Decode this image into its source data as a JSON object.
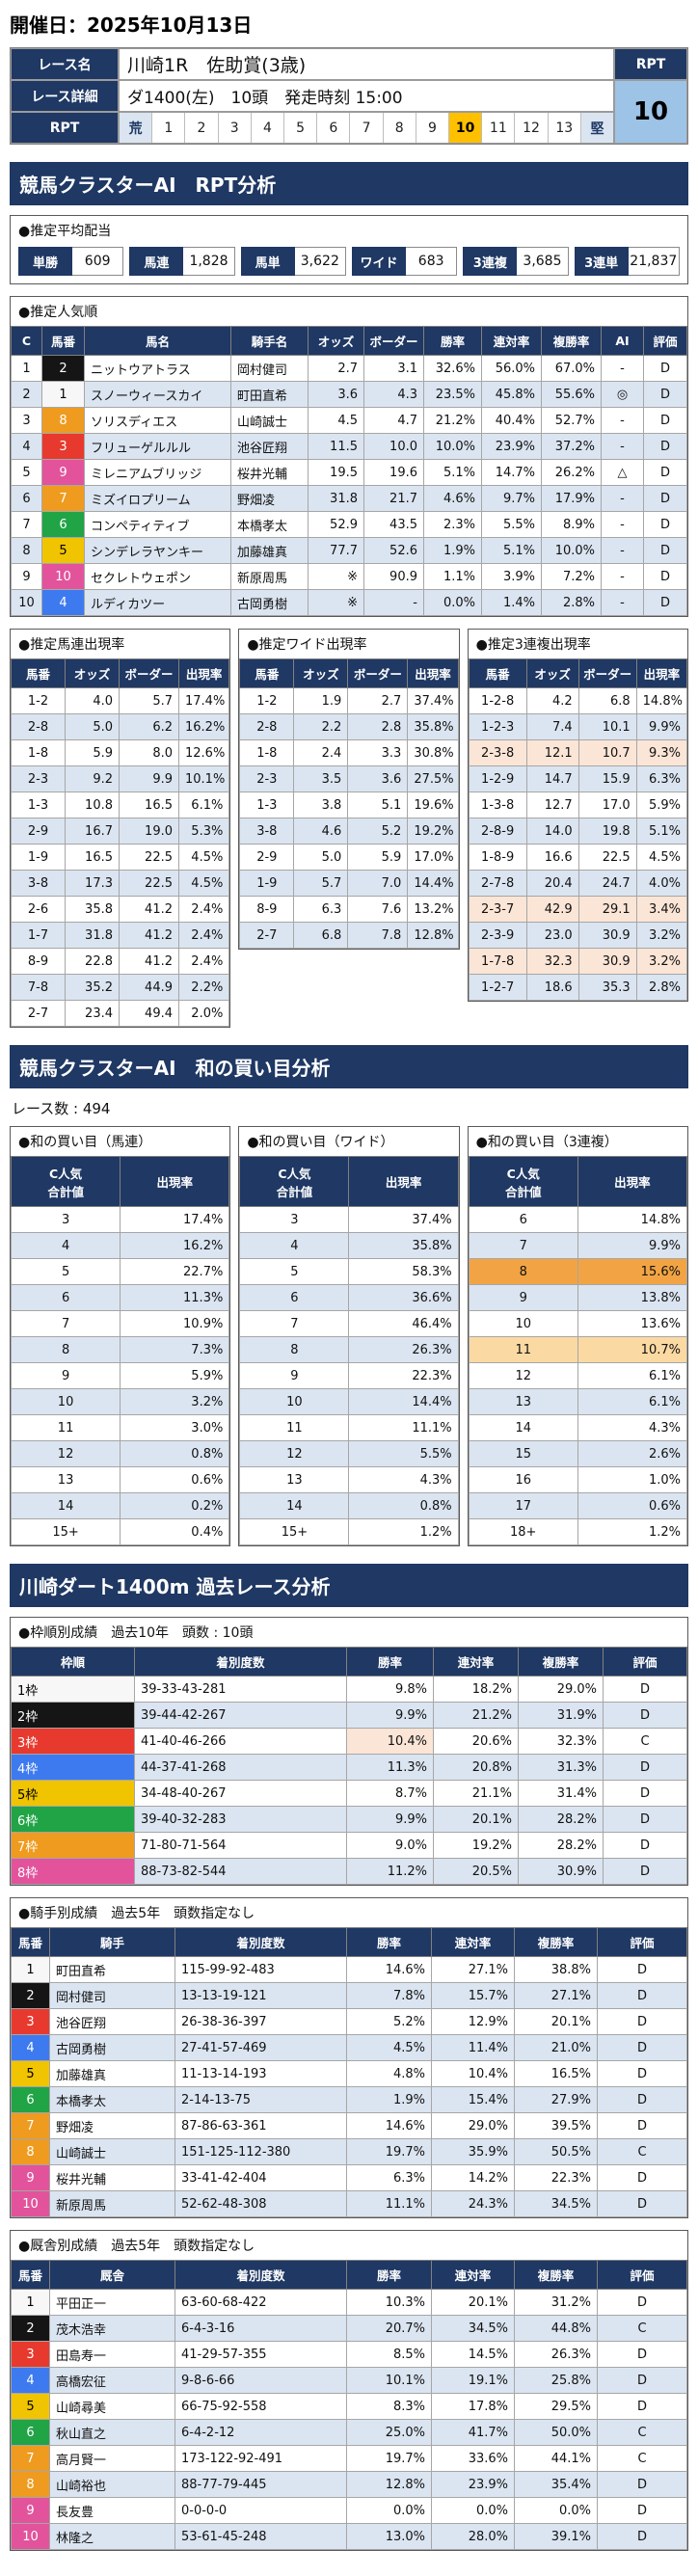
{
  "colors": {
    "navy": "#1f3864",
    "row_alt": "#dbe5f1",
    "peach": "#fbe5d6",
    "orange": "#f2a444",
    "light_orange": "#fbd9a3",
    "rpt_active": "#ffc000",
    "rpt_value_bg": "#9dc3e6",
    "waku1": "#f7f7f7",
    "waku2": "#151515",
    "waku3": "#e8392e",
    "waku4": "#3d7af0",
    "waku5": "#f0c400",
    "waku6": "#20a446",
    "waku7": "#ef9b1f",
    "waku8": "#e2539c"
  },
  "header": {
    "date": "開催日：2025年10月13日"
  },
  "race_info": {
    "name_label": "レース名",
    "name": "川崎1R　佐助賞(3歳)",
    "detail_label": "レース詳細",
    "detail": "ダ1400(左)　10頭　発走時刻 15:00",
    "rpt_label": "RPT",
    "rpt_value": "10",
    "rpt_scale": [
      {
        "t": "荒",
        "cls": "edge",
        "name": "rpt-scale-rough"
      },
      {
        "t": "1"
      },
      {
        "t": "2"
      },
      {
        "t": "3"
      },
      {
        "t": "4"
      },
      {
        "t": "5"
      },
      {
        "t": "6"
      },
      {
        "t": "7"
      },
      {
        "t": "8"
      },
      {
        "t": "9"
      },
      {
        "t": "10",
        "cls": "active",
        "name": "rpt-scale-active"
      },
      {
        "t": "11"
      },
      {
        "t": "12"
      },
      {
        "t": "13"
      },
      {
        "t": "堅",
        "cls": "edge",
        "name": "rpt-scale-solid"
      }
    ]
  },
  "sections": {
    "rpt_title": "競馬クラスターAI　RPT分析",
    "wa_title": "競馬クラスターAI　和の買い目分析",
    "wa_race_count": "レース数 : 494",
    "past_title": "川崎ダート1400m 過去レース分析"
  },
  "payout": {
    "label": "●推定平均配当",
    "items": [
      {
        "label": "単勝",
        "value": "609"
      },
      {
        "label": "馬連",
        "value": "1,828"
      },
      {
        "label": "馬単",
        "value": "3,622"
      },
      {
        "label": "ワイド",
        "value": "683"
      },
      {
        "label": "3連複",
        "value": "3,685"
      },
      {
        "label": "3連単",
        "value": "21,837"
      }
    ]
  },
  "popularity": {
    "label": "●推定人気順",
    "headers": [
      "C",
      "馬番",
      "馬名",
      "騎手名",
      "オッズ",
      "ボーダー",
      "勝率",
      "連対率",
      "複勝率",
      "AI",
      "評価"
    ],
    "rows": [
      [
        "1",
        {
          "t": "2",
          "cls": "waku waku2"
        },
        "ニットウアトラス",
        "岡村健司",
        "2.7",
        "3.1",
        "32.6%",
        "56.0%",
        "67.0%",
        "-",
        "D"
      ],
      [
        "2",
        {
          "t": "1",
          "cls": "waku waku1"
        },
        "スノーウィースカイ",
        "町田直希",
        "3.6",
        "4.3",
        "23.5%",
        "45.8%",
        "55.6%",
        "◎",
        "D"
      ],
      [
        "3",
        {
          "t": "8",
          "cls": "waku waku7"
        },
        "ソリスディエス",
        "山崎誠士",
        "4.5",
        "4.7",
        "21.2%",
        "40.4%",
        "52.7%",
        "-",
        "D"
      ],
      [
        "4",
        {
          "t": "3",
          "cls": "waku waku3"
        },
        "フリューゲルルル",
        "池谷匠翔",
        "11.5",
        "10.0",
        "10.0%",
        "23.9%",
        "37.2%",
        "-",
        "D"
      ],
      [
        "5",
        {
          "t": "9",
          "cls": "waku waku8"
        },
        "ミレニアムブリッジ",
        "桜井光輔",
        "19.5",
        "19.6",
        "5.1%",
        "14.7%",
        "26.2%",
        "△",
        "D"
      ],
      [
        "6",
        {
          "t": "7",
          "cls": "waku waku7"
        },
        "ミズイロプリーム",
        "野畑凌",
        "31.8",
        "21.7",
        "4.6%",
        "9.7%",
        "17.9%",
        "-",
        "D"
      ],
      [
        "7",
        {
          "t": "6",
          "cls": "waku waku6"
        },
        "コンペティティブ",
        "本橋孝太",
        "52.9",
        "43.5",
        "2.3%",
        "5.5%",
        "8.9%",
        "-",
        "D"
      ],
      [
        "8",
        {
          "t": "5",
          "cls": "waku waku5"
        },
        "シンデレラヤンキー",
        "加藤雄真",
        "77.7",
        "52.6",
        "1.9%",
        "5.1%",
        "10.0%",
        "-",
        "D"
      ],
      [
        "9",
        {
          "t": "10",
          "cls": "waku waku8"
        },
        "セクレトウェポン",
        "新原周馬",
        "※",
        "90.9",
        "1.1%",
        "3.9%",
        "7.2%",
        "-",
        "D"
      ],
      [
        "10",
        {
          "t": "4",
          "cls": "waku waku4"
        },
        "ルディカツー",
        "古岡勇樹",
        "※",
        "-",
        "0.0%",
        "1.4%",
        "2.8%",
        "-",
        "D"
      ]
    ]
  },
  "umaren": {
    "label": "●推定馬連出現率",
    "headers": [
      "馬番",
      "オッズ",
      "ボーダー",
      "出現率"
    ],
    "rows": [
      [
        "1-2",
        "4.0",
        "5.7",
        "17.4%"
      ],
      [
        "2-8",
        "5.0",
        "6.2",
        "16.2%"
      ],
      [
        "1-8",
        "5.9",
        "8.0",
        "12.6%"
      ],
      [
        "2-3",
        "9.2",
        "9.9",
        "10.1%"
      ],
      [
        "1-3",
        "10.8",
        "16.5",
        "6.1%"
      ],
      [
        "2-9",
        "16.7",
        "19.0",
        "5.3%"
      ],
      [
        "1-9",
        "16.5",
        "22.5",
        "4.5%"
      ],
      [
        "3-8",
        "17.3",
        "22.5",
        "4.5%"
      ],
      [
        "2-6",
        "35.8",
        "41.2",
        "2.4%"
      ],
      [
        "1-7",
        "31.8",
        "41.2",
        "2.4%"
      ],
      [
        "8-9",
        "22.8",
        "41.2",
        "2.4%"
      ],
      [
        "7-8",
        "35.2",
        "44.9",
        "2.2%"
      ],
      [
        "2-7",
        "23.4",
        "49.4",
        "2.0%"
      ]
    ]
  },
  "wide": {
    "label": "●推定ワイド出現率",
    "headers": [
      "馬番",
      "オッズ",
      "ボーダー",
      "出現率"
    ],
    "rows": [
      [
        "1-2",
        "1.9",
        "2.7",
        "37.4%"
      ],
      [
        "2-8",
        "2.2",
        "2.8",
        "35.8%"
      ],
      [
        "1-8",
        "2.4",
        "3.3",
        "30.8%"
      ],
      [
        "2-3",
        "3.5",
        "3.6",
        "27.5%"
      ],
      [
        "1-3",
        "3.8",
        "5.1",
        "19.6%"
      ],
      [
        "3-8",
        "4.6",
        "5.2",
        "19.2%"
      ],
      [
        "2-9",
        "5.0",
        "5.9",
        "17.0%"
      ],
      [
        "1-9",
        "5.7",
        "7.0",
        "14.4%"
      ],
      [
        "8-9",
        "6.3",
        "7.6",
        "13.2%"
      ],
      [
        "2-7",
        "6.8",
        "7.8",
        "12.8%"
      ]
    ]
  },
  "sanrenpuku": {
    "label": "●推定3連複出現率",
    "headers": [
      "馬番",
      "オッズ",
      "ボーダー",
      "出現率"
    ],
    "rows": [
      [
        "1-2-8",
        "4.2",
        "6.8",
        "14.8%"
      ],
      [
        "1-2-3",
        "7.4",
        "10.1",
        "9.9%"
      ],
      {
        "cls": "hl-peach",
        "cells": [
          "2-3-8",
          "12.1",
          "10.7",
          "9.3%"
        ]
      },
      [
        "1-2-9",
        "14.7",
        "15.9",
        "6.3%"
      ],
      [
        "1-3-8",
        "12.7",
        "17.0",
        "5.9%"
      ],
      [
        "2-8-9",
        "14.0",
        "19.8",
        "5.1%"
      ],
      [
        "1-8-9",
        "16.6",
        "22.5",
        "4.5%"
      ],
      [
        "2-7-8",
        "20.4",
        "24.7",
        "4.0%"
      ],
      {
        "cls": "hl-peach",
        "cells": [
          "2-3-7",
          "42.9",
          "29.1",
          "3.4%"
        ]
      },
      [
        "2-3-9",
        "23.0",
        "30.9",
        "3.2%"
      ],
      {
        "cls": "hl-peach",
        "cells": [
          "1-7-8",
          "32.3",
          "30.9",
          "3.2%"
        ]
      },
      [
        "1-2-7",
        "18.6",
        "35.3",
        "2.8%"
      ]
    ]
  },
  "wa_umaren": {
    "label": "●和の買い目（馬連）",
    "headers": [
      "C人気\n合計値",
      "出現率"
    ],
    "rows": [
      [
        "3",
        "17.4%"
      ],
      [
        "4",
        "16.2%"
      ],
      [
        "5",
        "22.7%"
      ],
      [
        "6",
        "11.3%"
      ],
      [
        "7",
        "10.9%"
      ],
      [
        "8",
        "7.3%"
      ],
      [
        "9",
        "5.9%"
      ],
      [
        "10",
        "3.2%"
      ],
      [
        "11",
        "3.0%"
      ],
      [
        "12",
        "0.8%"
      ],
      [
        "13",
        "0.6%"
      ],
      [
        "14",
        "0.2%"
      ],
      [
        "15+",
        "0.4%"
      ]
    ]
  },
  "wa_wide": {
    "label": "●和の買い目（ワイド）",
    "headers": [
      "C人気\n合計値",
      "出現率"
    ],
    "rows": [
      [
        "3",
        "37.4%"
      ],
      [
        "4",
        "35.8%"
      ],
      [
        "5",
        "58.3%"
      ],
      [
        "6",
        "36.6%"
      ],
      [
        "7",
        "46.4%"
      ],
      [
        "8",
        "26.3%"
      ],
      [
        "9",
        "22.3%"
      ],
      [
        "10",
        "14.4%"
      ],
      [
        "11",
        "11.1%"
      ],
      [
        "12",
        "5.5%"
      ],
      [
        "13",
        "4.3%"
      ],
      [
        "14",
        "0.8%"
      ],
      [
        "15+",
        "1.2%"
      ]
    ]
  },
  "wa_sanrenpuku": {
    "label": "●和の買い目（3連複）",
    "headers": [
      "C人気\n合計値",
      "出現率"
    ],
    "rows": [
      [
        "6",
        "14.8%"
      ],
      [
        "7",
        "9.9%"
      ],
      {
        "cls": "hl-orange",
        "cells": [
          "8",
          "15.6%"
        ]
      },
      [
        "9",
        "13.8%"
      ],
      [
        "10",
        "13.6%"
      ],
      {
        "cls": "hl-lorange",
        "cells": [
          "11",
          "10.7%"
        ]
      },
      [
        "12",
        "6.1%"
      ],
      [
        "13",
        "6.1%"
      ],
      [
        "14",
        "4.3%"
      ],
      [
        "15",
        "2.6%"
      ],
      [
        "16",
        "1.0%"
      ],
      [
        "17",
        "0.6%"
      ],
      [
        "18+",
        "1.2%"
      ]
    ]
  },
  "waku_table": {
    "label": "●枠順別成績　過去10年　頭数 : 10頭",
    "headers": [
      "枠順",
      "着別度数",
      "勝率",
      "連対率",
      "複勝率",
      "評価"
    ],
    "rows": [
      [
        {
          "t": "1枠",
          "cls": "wakucell waku1"
        },
        "39-33-43-281",
        "9.8%",
        "18.2%",
        "29.0%",
        "D"
      ],
      [
        {
          "t": "2枠",
          "cls": "wakucell waku2"
        },
        "39-44-42-267",
        "9.9%",
        "21.2%",
        "31.9%",
        "D"
      ],
      [
        {
          "t": "3枠",
          "cls": "wakucell waku3"
        },
        "41-40-46-266",
        {
          "t": "10.4%",
          "cls": "cell-peach"
        },
        "20.6%",
        "32.3%",
        "C"
      ],
      [
        {
          "t": "4枠",
          "cls": "wakucell waku4"
        },
        "44-37-41-268",
        "11.3%",
        "20.8%",
        "31.3%",
        "D"
      ],
      [
        {
          "t": "5枠",
          "cls": "wakucell waku5"
        },
        "34-48-40-267",
        "8.7%",
        "21.1%",
        "31.4%",
        "D"
      ],
      [
        {
          "t": "6枠",
          "cls": "wakucell waku6"
        },
        "39-40-32-283",
        "9.9%",
        "20.1%",
        "28.2%",
        "D"
      ],
      [
        {
          "t": "7枠",
          "cls": "wakucell waku7"
        },
        "71-80-71-564",
        "9.0%",
        "19.2%",
        "28.2%",
        "D"
      ],
      [
        {
          "t": "8枠",
          "cls": "wakucell waku8"
        },
        "88-73-82-544",
        "11.2%",
        "20.5%",
        "30.9%",
        "D"
      ]
    ]
  },
  "jockey_table": {
    "label": "●騎手別成績　過去5年　頭数指定なし",
    "headers": [
      "馬番",
      "騎手",
      "着別度数",
      "勝率",
      "連対率",
      "複勝率",
      "評価"
    ],
    "rows": [
      [
        {
          "t": "1",
          "cls": "waku waku1"
        },
        "町田直希",
        "115-99-92-483",
        "14.6%",
        "27.1%",
        "38.8%",
        "D"
      ],
      [
        {
          "t": "2",
          "cls": "waku waku2"
        },
        "岡村健司",
        "13-13-19-121",
        "7.8%",
        "15.7%",
        "27.1%",
        "D"
      ],
      [
        {
          "t": "3",
          "cls": "waku waku3"
        },
        "池谷匠翔",
        "26-38-36-397",
        "5.2%",
        "12.9%",
        "20.1%",
        "D"
      ],
      [
        {
          "t": "4",
          "cls": "waku waku4"
        },
        "古岡勇樹",
        "27-41-57-469",
        "4.5%",
        "11.4%",
        "21.0%",
        "D"
      ],
      [
        {
          "t": "5",
          "cls": "waku waku5"
        },
        "加藤雄真",
        "11-13-14-193",
        "4.8%",
        "10.4%",
        "16.5%",
        "D"
      ],
      [
        {
          "t": "6",
          "cls": "waku waku6"
        },
        "本橋孝太",
        "2-14-13-75",
        "1.9%",
        "15.4%",
        "27.9%",
        "D"
      ],
      [
        {
          "t": "7",
          "cls": "waku waku7"
        },
        "野畑凌",
        "87-86-63-361",
        "14.6%",
        "29.0%",
        "39.5%",
        "D"
      ],
      [
        {
          "t": "8",
          "cls": "waku waku7"
        },
        "山崎誠士",
        "151-125-112-380",
        "19.7%",
        "35.9%",
        "50.5%",
        "C"
      ],
      [
        {
          "t": "9",
          "cls": "waku waku8"
        },
        "桜井光輔",
        "33-41-42-404",
        "6.3%",
        "14.2%",
        "22.3%",
        "D"
      ],
      [
        {
          "t": "10",
          "cls": "waku waku8"
        },
        "新原周馬",
        "52-62-48-308",
        "11.1%",
        "24.3%",
        "34.5%",
        "D"
      ]
    ]
  },
  "stable_table": {
    "label": "●厩舎別成績　過去5年　頭数指定なし",
    "headers": [
      "馬番",
      "厩舎",
      "着別度数",
      "勝率",
      "連対率",
      "複勝率",
      "評価"
    ],
    "rows": [
      [
        {
          "t": "1",
          "cls": "waku waku1"
        },
        "平田正一",
        "63-60-68-422",
        "10.3%",
        "20.1%",
        "31.2%",
        "D"
      ],
      [
        {
          "t": "2",
          "cls": "waku waku2"
        },
        "茂木浩幸",
        "6-4-3-16",
        "20.7%",
        "34.5%",
        "44.8%",
        "C"
      ],
      [
        {
          "t": "3",
          "cls": "waku waku3"
        },
        "田島寿一",
        "41-29-57-355",
        "8.5%",
        "14.5%",
        "26.3%",
        "D"
      ],
      [
        {
          "t": "4",
          "cls": "waku waku4"
        },
        "高橋宏征",
        "9-8-6-66",
        "10.1%",
        "19.1%",
        "25.8%",
        "D"
      ],
      [
        {
          "t": "5",
          "cls": "waku waku5"
        },
        "山崎尋美",
        "66-75-92-558",
        "8.3%",
        "17.8%",
        "29.5%",
        "D"
      ],
      [
        {
          "t": "6",
          "cls": "waku waku6"
        },
        "秋山直之",
        "6-4-2-12",
        "25.0%",
        "41.7%",
        "50.0%",
        "C"
      ],
      [
        {
          "t": "7",
          "cls": "waku waku7"
        },
        "高月賢一",
        "173-122-92-491",
        "19.7%",
        "33.6%",
        "44.1%",
        "C"
      ],
      [
        {
          "t": "8",
          "cls": "waku waku7"
        },
        "山崎裕也",
        "88-77-79-445",
        "12.8%",
        "23.9%",
        "35.4%",
        "D"
      ],
      [
        {
          "t": "9",
          "cls": "waku waku8"
        },
        "長友豊",
        "0-0-0-0",
        "0.0%",
        "0.0%",
        "0.0%",
        "D"
      ],
      [
        {
          "t": "10",
          "cls": "waku waku8"
        },
        "林隆之",
        "53-61-45-248",
        "13.0%",
        "28.0%",
        "39.1%",
        "D"
      ]
    ]
  }
}
